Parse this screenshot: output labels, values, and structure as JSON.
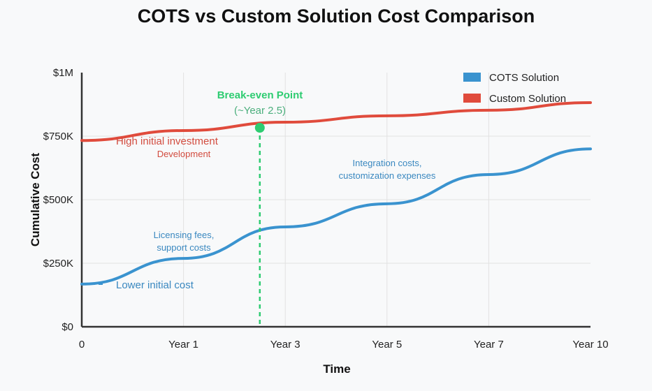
{
  "chart_data": {
    "type": "line",
    "title": "COTS vs Custom Solution Cost Comparison",
    "xlabel": "Time",
    "ylabel": "Cumulative Cost",
    "categories": [
      "0",
      "Year 1",
      "Year 3",
      "Year 5",
      "Year 7",
      "Year 10"
    ],
    "ylim": [
      0,
      1000000
    ],
    "yticks": [
      {
        "value": 0,
        "label": "$0"
      },
      {
        "value": 250000,
        "label": "$250K"
      },
      {
        "value": 500000,
        "label": "$500K"
      },
      {
        "value": 750000,
        "label": "$750K"
      },
      {
        "value": 1000000,
        "label": "$1M"
      }
    ],
    "grid": true,
    "legend_position": "top-right",
    "series": [
      {
        "name": "COTS Solution",
        "color": "#3a93cf",
        "values": [
          168000,
          269000,
          393000,
          484000,
          599000,
          700000
        ]
      },
      {
        "name": "Custom Solution",
        "color": "#e04b3c",
        "values": [
          733000,
          772000,
          805000,
          830000,
          852000,
          882000
        ]
      }
    ],
    "break_even": {
      "title": "Break-even Point",
      "subtitle": "(~Year 2.5)",
      "x_position": 1.75,
      "value": 783000,
      "color": "#2ecc71"
    },
    "annotations": {
      "custom_start": "High initial investment",
      "custom_note": "Development",
      "cots_start": "Lower initial cost",
      "cots_early": [
        "Licensing fees,",
        "support costs"
      ],
      "cots_late": [
        "Integration costs,",
        "customization expenses"
      ]
    }
  }
}
